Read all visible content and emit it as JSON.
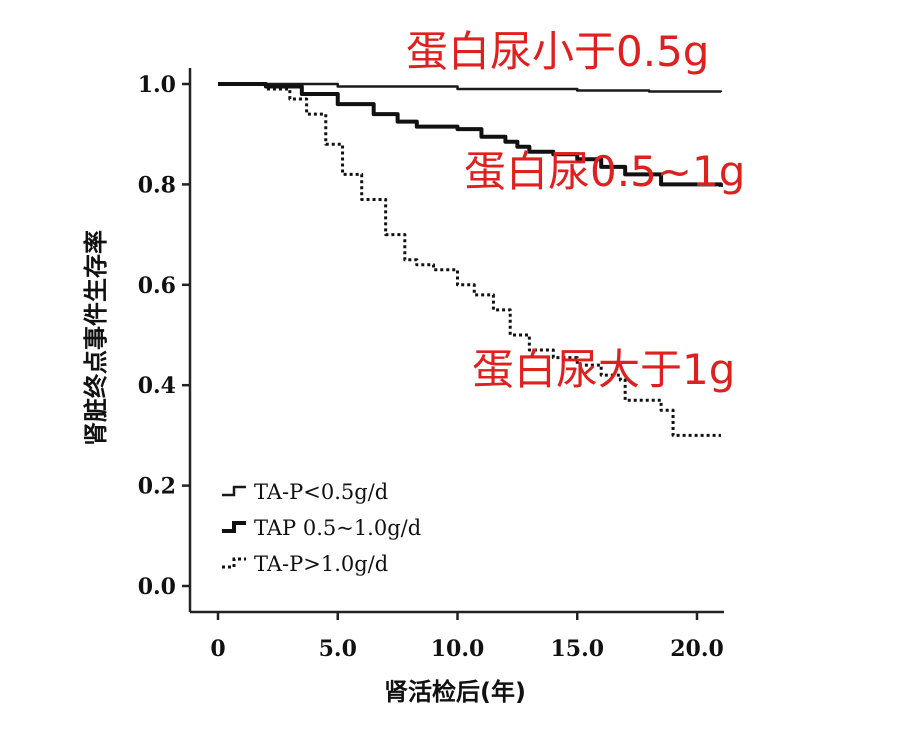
{
  "chart_data": {
    "type": "line",
    "xlabel": "肾活检后(年)",
    "ylabel": "肾脏终点事件生存率",
    "xlim": [
      -1,
      21
    ],
    "ylim": [
      0.0,
      1.0
    ],
    "x_ticks": [
      "0",
      "5.0",
      "10.0",
      "15.0",
      "20.0"
    ],
    "x_tick_values": [
      0,
      5,
      10,
      15,
      20
    ],
    "y_ticks": [
      "0.0",
      "0.2",
      "0.4",
      "0.6",
      "0.8",
      "1.0"
    ],
    "y_tick_values": [
      0.0,
      0.2,
      0.4,
      0.6,
      0.8,
      1.0
    ],
    "grid": false,
    "legend_position": "bottom-left",
    "series": [
      {
        "name": "TA-P<0.5g/d",
        "style": "solid-thin",
        "x": [
          0,
          5,
          10,
          15,
          18,
          21
        ],
        "y": [
          1.0,
          0.995,
          0.99,
          0.987,
          0.985,
          0.984
        ]
      },
      {
        "name": "TAP 0.5~1.0g/d",
        "style": "solid-thick",
        "x": [
          0,
          2,
          3.5,
          5,
          6.5,
          7.5,
          8.3,
          9,
          10,
          11,
          12,
          12.5,
          13,
          14,
          15,
          16,
          17,
          18.5,
          21
        ],
        "y": [
          1.0,
          0.995,
          0.98,
          0.96,
          0.94,
          0.925,
          0.915,
          0.915,
          0.91,
          0.895,
          0.885,
          0.875,
          0.865,
          0.86,
          0.85,
          0.835,
          0.82,
          0.8,
          0.795
        ]
      },
      {
        "name": "TA-P>1.0g/d",
        "style": "dotted",
        "x": [
          0,
          2,
          3,
          3.7,
          4.5,
          5.2,
          6,
          7,
          7.8,
          8.3,
          9,
          10,
          10.7,
          11.5,
          12.2,
          13,
          14,
          15,
          16,
          16.8,
          17,
          18.5,
          19,
          21
        ],
        "y": [
          1.0,
          0.99,
          0.97,
          0.94,
          0.88,
          0.82,
          0.77,
          0.7,
          0.65,
          0.64,
          0.63,
          0.6,
          0.58,
          0.55,
          0.5,
          0.47,
          0.455,
          0.44,
          0.42,
          0.41,
          0.37,
          0.35,
          0.3,
          0.3
        ]
      }
    ],
    "annotations": [
      {
        "text": "蛋白尿小于0.5g",
        "color": "#e01f1f"
      },
      {
        "text": "蛋白尿0.5~1g",
        "color": "#e01f1f"
      },
      {
        "text": "蛋白尿大于1g",
        "color": "#e01f1f"
      }
    ]
  }
}
